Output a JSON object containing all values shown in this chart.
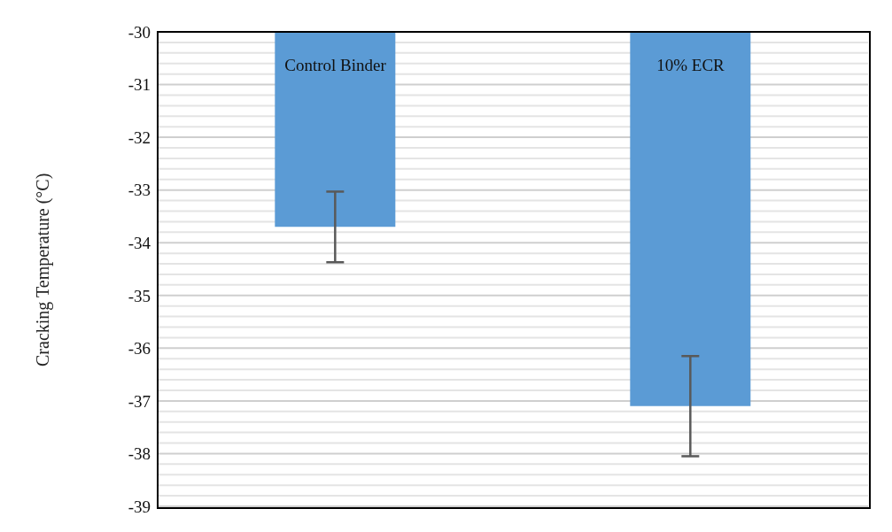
{
  "chart_data": {
    "type": "bar",
    "ylabel": "Cracking Temperature (°C)",
    "categories": [
      "Control Binder",
      "10% ECR"
    ],
    "values": [
      -33.7,
      -37.1
    ],
    "color": "#5b9bd5",
    "errors": [
      0.67,
      0.95
    ],
    "ylim": [
      -39,
      -30
    ],
    "yticks": [
      -39,
      {
        "value": -38.8,
        "label": null
      },
      {
        "value": -38.6,
        "label": null
      },
      {
        "value": -38.4,
        "label": null
      },
      {
        "value": -38.2,
        "label": null
      },
      -38,
      {
        "value": -37.8,
        "label": null
      },
      {
        "value": -37.6,
        "label": null
      },
      {
        "value": -37.4,
        "label": null
      },
      {
        "value": -37.2,
        "label": null
      },
      -37,
      {
        "value": -36.8,
        "label": null
      },
      {
        "value": -36.6,
        "label": null
      },
      {
        "value": -36.4,
        "label": null
      },
      {
        "value": -36.2,
        "label": null
      },
      -36,
      {
        "value": -35.8,
        "label": null
      },
      {
        "value": -35.6,
        "label": null
      },
      {
        "value": -35.4,
        "label": null
      },
      {
        "value": -35.2,
        "label": null
      },
      -35,
      {
        "value": -34.8,
        "label": null
      },
      {
        "value": -34.6,
        "label": null
      },
      {
        "value": -34.4,
        "label": null
      },
      {
        "value": -34.2,
        "label": null
      },
      -34,
      {
        "value": -33.8,
        "label": null
      },
      {
        "value": -33.6,
        "label": null
      },
      {
        "value": -33.4,
        "label": null
      },
      {
        "value": -33.2,
        "label": null
      },
      -33,
      {
        "value": -32.8,
        "label": null
      },
      {
        "value": -32.6,
        "label": null
      },
      {
        "value": -32.4,
        "label": null
      },
      {
        "value": -32.2,
        "label": null
      },
      -32,
      {
        "value": -31.8,
        "label": null
      },
      {
        "value": -31.6,
        "label": null
      },
      {
        "value": -31.4,
        "label": null
      },
      {
        "value": -31.2,
        "label": null
      },
      -31,
      {
        "value": -30.8,
        "label": null
      },
      {
        "value": -30.6,
        "label": null
      },
      {
        "value": -30.4,
        "label": null
      },
      {
        "value": -30.2,
        "label": null
      },
      -30
    ],
    "grid": "y"
  }
}
